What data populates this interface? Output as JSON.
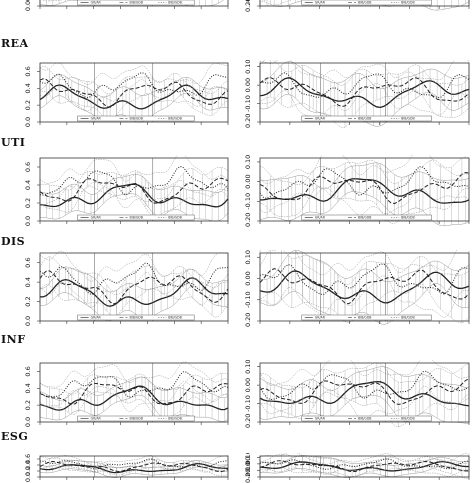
{
  "chart_data": {
    "type": "line",
    "rows": [
      {
        "label": "",
        "partial": "top"
      },
      {
        "label": "REA"
      },
      {
        "label": "UTI"
      },
      {
        "label": "DIS"
      },
      {
        "label": "INF"
      },
      {
        "label": "ESG",
        "partial": "bottom"
      }
    ],
    "left_panels": {
      "ylim": [
        0,
        0.7
      ],
      "yticks": [
        "0.0",
        "0.2",
        "0.4",
        "0.6"
      ],
      "ytick_values": [
        0,
        0.2,
        0.4,
        0.6
      ]
    },
    "right_panels": {
      "ylim": [
        -0.2,
        0.12
      ],
      "yticks": [
        "-0.20",
        "-0.10",
        "0.00",
        "0.10"
      ],
      "ytick_values": [
        -0.2,
        -0.1,
        0.0,
        0.1
      ]
    },
    "legend_entries": [
      "GR/AR",
      "BIB/GDB",
      "BIB/GDB"
    ],
    "grid": false,
    "legend_position": "bottom-center",
    "series_styles": [
      "solid",
      "dashed",
      "dotted"
    ],
    "colors": {
      "line": "#222222",
      "band": "#9a9a9a",
      "frame": "#333333"
    }
  }
}
